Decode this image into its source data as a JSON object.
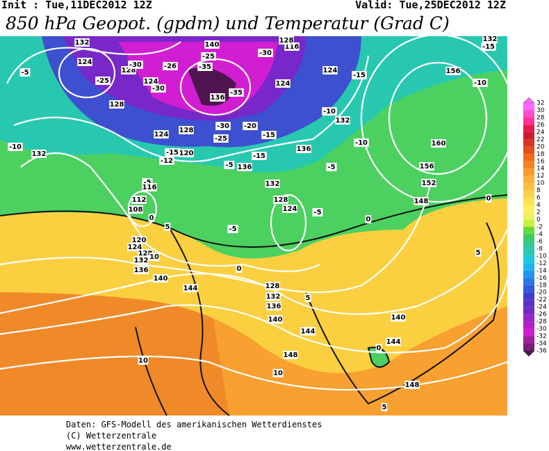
{
  "header": {
    "init": "Init : Tue,11DEC2012 12Z",
    "valid": "Valid: Tue,25DEC2012 12Z",
    "title": "850 hPa Geopot. (gpdm) und Temperatur (Grad C)"
  },
  "colorbar": {
    "labels": [
      32,
      30,
      28,
      26,
      24,
      22,
      20,
      18,
      16,
      14,
      12,
      10,
      8,
      6,
      4,
      2,
      0,
      -2,
      -4,
      -6,
      -8,
      -10,
      -12,
      -14,
      -16,
      -18,
      -20,
      -22,
      -24,
      -26,
      -28,
      -30,
      -32,
      -34,
      -36
    ],
    "colors": [
      "#ff66ff",
      "#ff4dcc",
      "#ff3399",
      "#e6194b",
      "#cc1a33",
      "#d93326",
      "#e64d1a",
      "#f06a1a",
      "#f5821f",
      "#f89a2a",
      "#fbb03b",
      "#fcc040",
      "#fdd24a",
      "#fee050",
      "#fff05a",
      "#f0f060",
      "#c8f03c",
      "#64dc3c",
      "#3cc864",
      "#32c896",
      "#28c8b4",
      "#1ec8dc",
      "#1eb4f0",
      "#1e96f0",
      "#2878e6",
      "#325adc",
      "#3c3cc8",
      "#5a32c8",
      "#7828c8",
      "#9628c8",
      "#b41ec8",
      "#d21ed2",
      "#a01ea0",
      "#781e78",
      "#501450"
    ]
  },
  "contour_labels": [
    "132",
    "124",
    "128",
    "-25",
    "-30",
    "-30",
    "124",
    "-26",
    "-35",
    "140",
    "-25",
    "-30",
    "116",
    "128",
    "136",
    "-35",
    "124",
    "124",
    "-15",
    "156",
    "-10",
    "-15",
    "132",
    "-5",
    "128",
    "124",
    "128",
    "-30",
    "-25",
    "-20",
    "-15",
    "-10",
    "132",
    "-10",
    "160",
    "156",
    "-10",
    "132",
    "-15",
    "120",
    "-12",
    "-15",
    "136",
    "-5",
    "136",
    "-5",
    "132",
    "152",
    "148",
    "-5",
    "116",
    "112",
    "108",
    "0",
    "128",
    "124",
    "-5",
    "0",
    "0",
    "-5",
    "5",
    "120",
    "124",
    "128",
    "132",
    "136",
    "10",
    "0",
    "5",
    "140",
    "144",
    "128",
    "132",
    "136",
    "5",
    "140",
    "140",
    "144",
    "144",
    "0",
    "148",
    "148",
    "10",
    "10",
    "5"
  ],
  "footer": {
    "line1": "Daten: GFS-Modell des amerikanischen Wetterdienstes",
    "line2": "(C) Wetterzentrale",
    "line3": "www.wetterzentrale.de"
  }
}
